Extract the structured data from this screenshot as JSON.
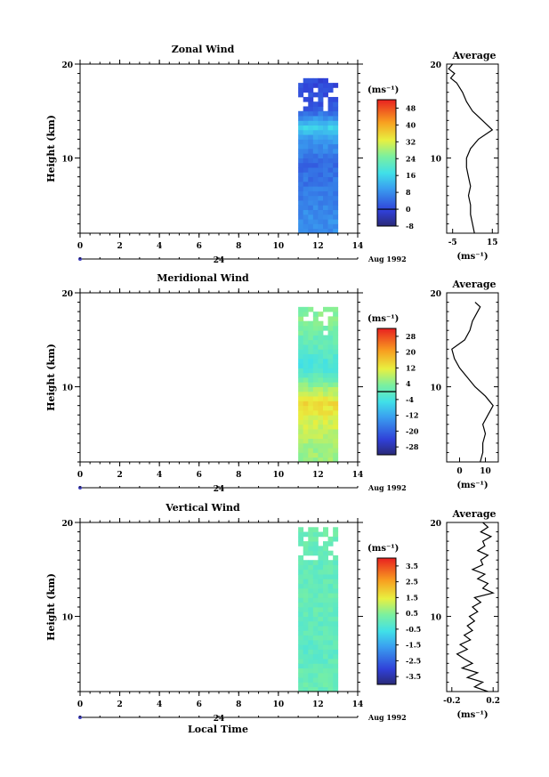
{
  "figure": {
    "shared": {
      "xlabel": "Local Time",
      "date_label": "Aug 1992",
      "day_label": "24",
      "height_label": "Height (km)",
      "unit_label_html": "(ms⁻¹)",
      "average_title": "Average"
    }
  },
  "chart_data": [
    {
      "type": "heatmap",
      "title": "Zonal Wind",
      "ylabel": "Height (km)",
      "xlabel": "",
      "xlim": [
        0,
        14
      ],
      "ylim": [
        2,
        20
      ],
      "xticks": [
        0,
        2,
        4,
        6,
        8,
        10,
        12,
        14
      ],
      "yticks": [
        10,
        20
      ],
      "data_extent": {
        "x": [
          11,
          13
        ],
        "y": [
          2,
          18.5
        ]
      },
      "colorbar": {
        "unit": "(ms⁻¹)",
        "ticks": [
          -8,
          0,
          8,
          16,
          24,
          32,
          40,
          48
        ],
        "range": [
          -8,
          52
        ],
        "zero_line": 0
      },
      "profile_samples": [
        {
          "height": 3,
          "value": 8
        },
        {
          "height": 6,
          "value": 6
        },
        {
          "height": 9,
          "value": 4
        },
        {
          "height": 12,
          "value": 10
        },
        {
          "height": 13,
          "value": 15
        },
        {
          "height": 15,
          "value": 2
        },
        {
          "height": 18,
          "value": 0
        }
      ],
      "average": {
        "title": "Average",
        "xticks": [
          -5,
          15
        ],
        "xlim": [
          -8,
          18
        ],
        "xlabel": "(ms⁻¹)",
        "height": [
          2,
          3,
          4,
          5,
          6,
          7,
          8,
          9,
          10,
          11,
          12,
          13,
          14,
          15,
          16,
          17,
          18,
          18.5,
          19,
          19.5,
          20
        ],
        "values": [
          6,
          5,
          4,
          4,
          3,
          4,
          3,
          2,
          2,
          4,
          8,
          15,
          10,
          5,
          2,
          0,
          -3,
          -6,
          -4,
          -7,
          -5
        ]
      }
    },
    {
      "type": "heatmap",
      "title": "Meridional Wind",
      "ylabel": "Height (km)",
      "xlabel": "",
      "xlim": [
        0,
        14
      ],
      "ylim": [
        2,
        20
      ],
      "xticks": [
        0,
        2,
        4,
        6,
        8,
        10,
        12,
        14
      ],
      "yticks": [
        10,
        20
      ],
      "data_extent": {
        "x": [
          11,
          13
        ],
        "y": [
          2,
          18.5
        ]
      },
      "colorbar": {
        "unit": "(ms⁻¹)",
        "ticks": [
          -28,
          -20,
          -12,
          -4,
          4,
          12,
          20,
          28
        ],
        "range": [
          -32,
          32
        ],
        "zero_line": 0
      },
      "profile_samples": [
        {
          "height": 3,
          "value": 6
        },
        {
          "height": 6,
          "value": 10
        },
        {
          "height": 8,
          "value": 14
        },
        {
          "height": 10,
          "value": 4
        },
        {
          "height": 12,
          "value": -4
        },
        {
          "height": 14,
          "value": 0
        },
        {
          "height": 17,
          "value": 4
        }
      ],
      "average": {
        "title": "Average",
        "xticks": [
          0,
          10
        ],
        "xlim": [
          -5,
          15
        ],
        "xlabel": "(ms⁻¹)",
        "height": [
          2,
          3,
          4,
          5,
          6,
          7,
          8,
          9,
          10,
          11,
          12,
          13,
          14,
          15,
          16,
          17,
          18,
          18.5,
          19
        ],
        "values": [
          8,
          9,
          9,
          10,
          9,
          11,
          13,
          10,
          6,
          3,
          0,
          -2,
          -3,
          2,
          4,
          5,
          7,
          8,
          6
        ]
      }
    },
    {
      "type": "heatmap",
      "title": "Vertical Wind",
      "ylabel": "Height (km)",
      "xlabel": "Local Time",
      "xlim": [
        0,
        14
      ],
      "ylim": [
        2,
        20
      ],
      "xticks": [
        0,
        2,
        4,
        6,
        8,
        10,
        12,
        14
      ],
      "yticks": [
        10,
        20
      ],
      "data_extent": {
        "x": [
          11,
          13
        ],
        "y": [
          2,
          19.5
        ]
      },
      "colorbar": {
        "unit": "(ms⁻¹)",
        "ticks": [
          -3.5,
          -2.5,
          -1.5,
          -0.5,
          0.5,
          1.5,
          2.5,
          3.5
        ],
        "range": [
          -4,
          4
        ],
        "zero_line": null
      },
      "profile_samples": [
        {
          "height": 3,
          "value": 0.1
        },
        {
          "height": 6,
          "value": -0.1
        },
        {
          "height": 9,
          "value": 0
        },
        {
          "height": 12,
          "value": 0.1
        },
        {
          "height": 15,
          "value": 0
        },
        {
          "height": 18,
          "value": 0.1
        }
      ],
      "average": {
        "title": "Average",
        "xticks": [
          -0.2,
          0.2
        ],
        "xlim": [
          -0.25,
          0.25
        ],
        "xlabel": "(ms⁻¹)",
        "height": [
          2,
          2.5,
          3,
          3.5,
          4,
          4.5,
          5,
          5.5,
          6,
          6.5,
          7,
          7.5,
          8,
          8.5,
          9,
          9.5,
          10,
          10.5,
          11,
          11.5,
          12,
          12.5,
          13,
          13.5,
          14,
          14.5,
          15,
          15.5,
          16,
          16.5,
          17,
          17.5,
          18,
          18.5,
          19,
          19.5,
          20
        ],
        "values": [
          0.15,
          0.02,
          0.1,
          -0.05,
          0.05,
          -0.1,
          0.0,
          -0.08,
          -0.15,
          -0.05,
          -0.12,
          -0.02,
          -0.08,
          0.0,
          -0.05,
          0.02,
          -0.03,
          0.05,
          0.0,
          0.08,
          0.02,
          0.2,
          0.1,
          0.15,
          0.05,
          0.12,
          0.0,
          0.1,
          0.08,
          0.15,
          0.05,
          0.12,
          0.1,
          0.18,
          0.08,
          0.15,
          0.1
        ]
      }
    }
  ]
}
